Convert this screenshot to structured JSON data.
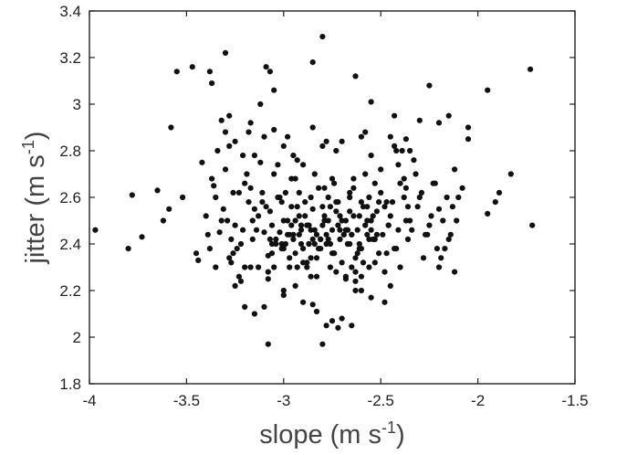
{
  "chart_data": {
    "type": "scatter",
    "title": "",
    "xlabel": {
      "base": "slope (m s",
      "sup": "-1",
      "tail": ")"
    },
    "ylabel": {
      "base": "jitter (m s",
      "sup": "-1",
      "tail": ")"
    },
    "xlim": [
      -4,
      -1.5
    ],
    "ylim": [
      1.8,
      3.4
    ],
    "xticks": [
      -4,
      -3.5,
      -3,
      -2.5,
      -2,
      -1.5
    ],
    "yticks": [
      1.8,
      2,
      2.2,
      2.4,
      2.6,
      2.8,
      3,
      3.2,
      3.4
    ],
    "xtick_labels": [
      "-4",
      "-3.5",
      "-3",
      "-2.5",
      "-2",
      "-1.5"
    ],
    "ytick_labels": [
      "1.8",
      "2",
      "2.2",
      "2.4",
      "2.6",
      "2.8",
      "3",
      "3.2",
      "3.4"
    ],
    "grid": false,
    "legend": "none",
    "marker_color": "#111111",
    "series": [
      {
        "x": [
          -2.8,
          -3.3,
          -3.38,
          -3.55,
          -3.47,
          -3.09,
          -3.07,
          -3.37,
          -2.85,
          -2.63,
          -3.05,
          -2.55,
          -2.25,
          -2.3,
          -2.43,
          -3.12,
          -3.28,
          -3.58,
          -3.32,
          -3.17,
          -3.05,
          -2.42,
          -2.37,
          -2.2,
          -2.15,
          -2.05,
          -1.95,
          -2.05,
          -1.83,
          -1.73,
          -3.97,
          -3.78,
          -3.8,
          -3.73,
          -3.65,
          -3.62,
          -3.59,
          -3.52,
          -1.89,
          -1.91,
          -1.95,
          -2.08,
          -1.72,
          -3.08,
          -2.8,
          -2.78,
          -2.75,
          -2.72,
          -2.63,
          -2.7,
          -3.1,
          -2.9,
          -3.15,
          -2.83,
          -3.2,
          -3.0,
          -2.48,
          -2.55,
          -3.44,
          -3.45,
          -3.35,
          -3.22,
          -2.2,
          -2.12,
          -2.45,
          -2.6,
          -2.68,
          -3.0,
          -2.94,
          -2.85,
          -3.25,
          -3.08,
          -2.65
        ],
        "y": [
          3.29,
          3.22,
          3.14,
          3.14,
          3.16,
          3.16,
          3.14,
          3.09,
          3.18,
          3.12,
          3.06,
          3.01,
          3.08,
          2.93,
          2.95,
          3.0,
          2.95,
          2.9,
          2.93,
          2.92,
          2.89,
          2.8,
          2.85,
          2.92,
          2.95,
          2.9,
          3.06,
          2.85,
          2.7,
          3.15,
          2.46,
          2.61,
          2.38,
          2.43,
          2.63,
          2.5,
          2.55,
          2.6,
          2.62,
          2.58,
          2.53,
          2.64,
          2.48,
          1.97,
          1.97,
          2.05,
          2.07,
          2.04,
          2.2,
          2.08,
          2.13,
          2.15,
          2.1,
          2.11,
          2.13,
          2.18,
          2.15,
          2.17,
          2.33,
          2.36,
          2.3,
          2.24,
          2.3,
          2.28,
          2.22,
          2.2,
          2.25,
          2.2,
          2.22,
          2.14,
          2.22,
          2.25,
          2.05
        ]
      },
      {
        "x": [
          -3.4,
          -3.35,
          -3.3,
          -3.25,
          -3.2,
          -3.15,
          -3.1,
          -3.05,
          -3.0,
          -2.95,
          -2.9,
          -2.85,
          -2.8,
          -2.75,
          -2.7,
          -2.65,
          -2.6,
          -2.55,
          -2.5,
          -2.45,
          -2.4,
          -2.35,
          -2.3,
          -2.25,
          -2.2,
          -2.15,
          -2.1,
          -3.38,
          -3.33,
          -3.28,
          -3.22,
          -3.18,
          -3.12,
          -3.08,
          -3.02,
          -2.98,
          -2.92,
          -2.88,
          -2.82,
          -2.78,
          -2.72,
          -2.68,
          -2.62,
          -2.58,
          -2.52,
          -2.48,
          -2.42,
          -2.38,
          -2.32,
          -2.28,
          -2.22,
          -2.18,
          -2.12,
          -3.42,
          -3.36,
          -3.31,
          -3.27,
          -3.21,
          -3.16,
          -3.11,
          -3.06,
          -3.01,
          -2.96,
          -2.91,
          -2.86,
          -2.81,
          -2.76,
          -2.71,
          -2.66,
          -2.61,
          -2.56,
          -2.51,
          -2.46,
          -2.41,
          -2.36,
          -2.31,
          -2.26,
          -2.21,
          -2.16,
          -2.11,
          -3.39,
          -3.34,
          -3.29,
          -3.24,
          -3.19,
          -3.14,
          -3.09,
          -3.04,
          -2.99,
          -2.94,
          -2.89,
          -2.84,
          -2.79,
          -2.74,
          -2.69,
          -2.64,
          -2.59,
          -2.54,
          -2.49,
          -2.44,
          -2.39,
          -2.34,
          -2.29,
          -2.24,
          -2.19,
          -2.14,
          -3.37,
          -3.32,
          -3.26,
          -3.23,
          -3.17,
          -3.13,
          -3.07,
          -3.03,
          -2.97,
          -2.93,
          -2.87,
          -2.83,
          -2.77,
          -2.73,
          -2.67,
          -2.63,
          -2.57,
          -2.53,
          -2.47,
          -2.43,
          -2.37,
          -2.33,
          -2.27,
          -2.23,
          -2.17,
          -2.13
        ],
        "y": [
          2.52,
          2.6,
          2.72,
          2.48,
          2.66,
          2.55,
          2.45,
          2.7,
          2.5,
          2.42,
          2.38,
          2.55,
          2.48,
          2.36,
          2.5,
          2.44,
          2.58,
          2.46,
          2.62,
          2.52,
          2.66,
          2.5,
          2.6,
          2.48,
          2.55,
          2.42,
          2.6,
          2.38,
          2.45,
          2.82,
          2.4,
          2.58,
          2.75,
          2.35,
          2.6,
          2.44,
          2.52,
          2.3,
          2.64,
          2.4,
          2.58,
          2.46,
          2.36,
          2.7,
          2.44,
          2.56,
          2.38,
          2.6,
          2.7,
          2.34,
          2.66,
          2.5,
          2.72,
          2.75,
          2.65,
          2.55,
          2.32,
          2.78,
          2.42,
          2.62,
          2.48,
          2.38,
          2.68,
          2.46,
          2.34,
          2.42,
          2.56,
          2.46,
          2.4,
          2.52,
          2.6,
          2.36,
          2.48,
          2.74,
          2.42,
          2.56,
          2.44,
          2.38,
          2.6,
          2.5,
          2.44,
          2.8,
          2.5,
          2.38,
          2.7,
          2.46,
          2.56,
          2.4,
          2.62,
          2.5,
          2.58,
          2.4,
          2.52,
          2.36,
          2.44,
          2.64,
          2.32,
          2.52,
          2.44,
          2.58,
          2.8,
          2.46,
          2.62,
          2.52,
          2.34,
          2.44,
          2.68,
          2.5,
          2.36,
          2.62,
          2.3,
          2.52,
          2.42,
          2.6,
          2.34,
          2.76,
          2.48,
          2.44,
          2.6,
          2.54,
          2.4,
          2.28,
          2.5,
          2.66,
          2.58,
          2.38,
          2.64,
          2.76,
          2.44,
          2.66,
          2.38,
          2.56
        ]
      },
      {
        "x": [
          -3.3,
          -3.25,
          -3.2,
          -3.15,
          -3.1,
          -3.05,
          -3.0,
          -2.95,
          -2.9,
          -2.85,
          -2.8,
          -2.75,
          -2.7,
          -2.65,
          -2.6,
          -2.55,
          -2.5,
          -2.45,
          -2.4,
          -2.35,
          -3.28,
          -3.18,
          -3.08,
          -2.98,
          -2.88,
          -2.78,
          -2.68,
          -2.58,
          -2.48,
          -2.38,
          -3.23,
          -3.13,
          -3.03,
          -2.93,
          -2.83,
          -2.73,
          -2.63,
          -2.53,
          -2.43,
          -3.26,
          -3.16,
          -3.06,
          -2.96,
          -2.86,
          -2.76,
          -2.66,
          -2.56,
          -2.46,
          -2.36,
          -3.21,
          -3.11,
          -3.01,
          -2.91,
          -2.81,
          -2.71,
          -2.61,
          -2.51,
          -2.41,
          -3.27,
          -3.17,
          -3.07,
          -2.97,
          -2.87,
          -2.77,
          -2.67,
          -2.57,
          -2.47,
          -2.37
        ],
        "y": [
          2.88,
          2.84,
          2.3,
          2.78,
          2.86,
          2.3,
          2.82,
          2.78,
          2.74,
          2.9,
          2.82,
          2.68,
          2.84,
          2.3,
          2.86,
          2.78,
          2.72,
          2.86,
          2.3,
          2.8,
          2.34,
          2.88,
          2.28,
          2.86,
          2.32,
          2.84,
          2.26,
          2.88,
          2.28,
          2.68,
          2.26,
          2.3,
          2.74,
          2.3,
          2.26,
          2.8,
          2.24,
          2.32,
          2.82,
          2.62,
          2.5,
          2.36,
          2.56,
          2.46,
          2.4,
          2.54,
          2.42,
          2.48,
          2.56,
          2.46,
          2.58,
          2.4,
          2.48,
          2.42,
          2.52,
          2.38,
          2.58,
          2.46,
          2.42,
          2.64,
          2.54,
          2.44,
          2.4,
          2.5,
          2.46,
          2.56,
          2.36,
          2.5
        ]
      },
      {
        "x": [
          -3.02,
          -2.99,
          -2.96,
          -2.94,
          -2.92,
          -2.89,
          -2.87,
          -2.84,
          -2.82,
          -2.79,
          -2.77,
          -2.74,
          -2.72,
          -2.69,
          -2.67,
          -2.64,
          -2.62,
          -2.6,
          -2.57,
          -2.55,
          -3.01,
          -2.97,
          -2.93,
          -2.9,
          -2.86,
          -2.83,
          -2.8,
          -2.76,
          -2.73,
          -2.7,
          -2.66,
          -2.63,
          -2.59,
          -2.56,
          -2.52,
          -3.04,
          -2.98,
          -2.95,
          -2.91,
          -2.88,
          -2.85,
          -2.81,
          -2.78,
          -2.75,
          -2.71,
          -2.68,
          -2.65,
          -2.61,
          -2.58,
          -2.54,
          -3.06,
          -3.0,
          -2.92,
          -2.86,
          -2.79,
          -2.73,
          -2.66,
          -2.6,
          -2.53,
          -2.94,
          -2.84,
          -2.74,
          -2.64
        ],
        "y": [
          2.45,
          2.4,
          2.48,
          2.36,
          2.44,
          2.52,
          2.4,
          2.46,
          2.38,
          2.5,
          2.42,
          2.36,
          2.48,
          2.44,
          2.4,
          2.52,
          2.46,
          2.38,
          2.44,
          2.5,
          2.58,
          2.3,
          2.56,
          2.32,
          2.6,
          2.34,
          2.56,
          2.3,
          2.58,
          2.32,
          2.6,
          2.34,
          2.56,
          2.3,
          2.54,
          2.42,
          2.5,
          2.44,
          2.4,
          2.48,
          2.42,
          2.38,
          2.44,
          2.46,
          2.42,
          2.5,
          2.44,
          2.4,
          2.48,
          2.42,
          2.4,
          2.38,
          2.62,
          2.26,
          2.64,
          2.28,
          2.62,
          2.26,
          2.42,
          2.68,
          2.7,
          2.66,
          2.68
        ]
      }
    ]
  }
}
